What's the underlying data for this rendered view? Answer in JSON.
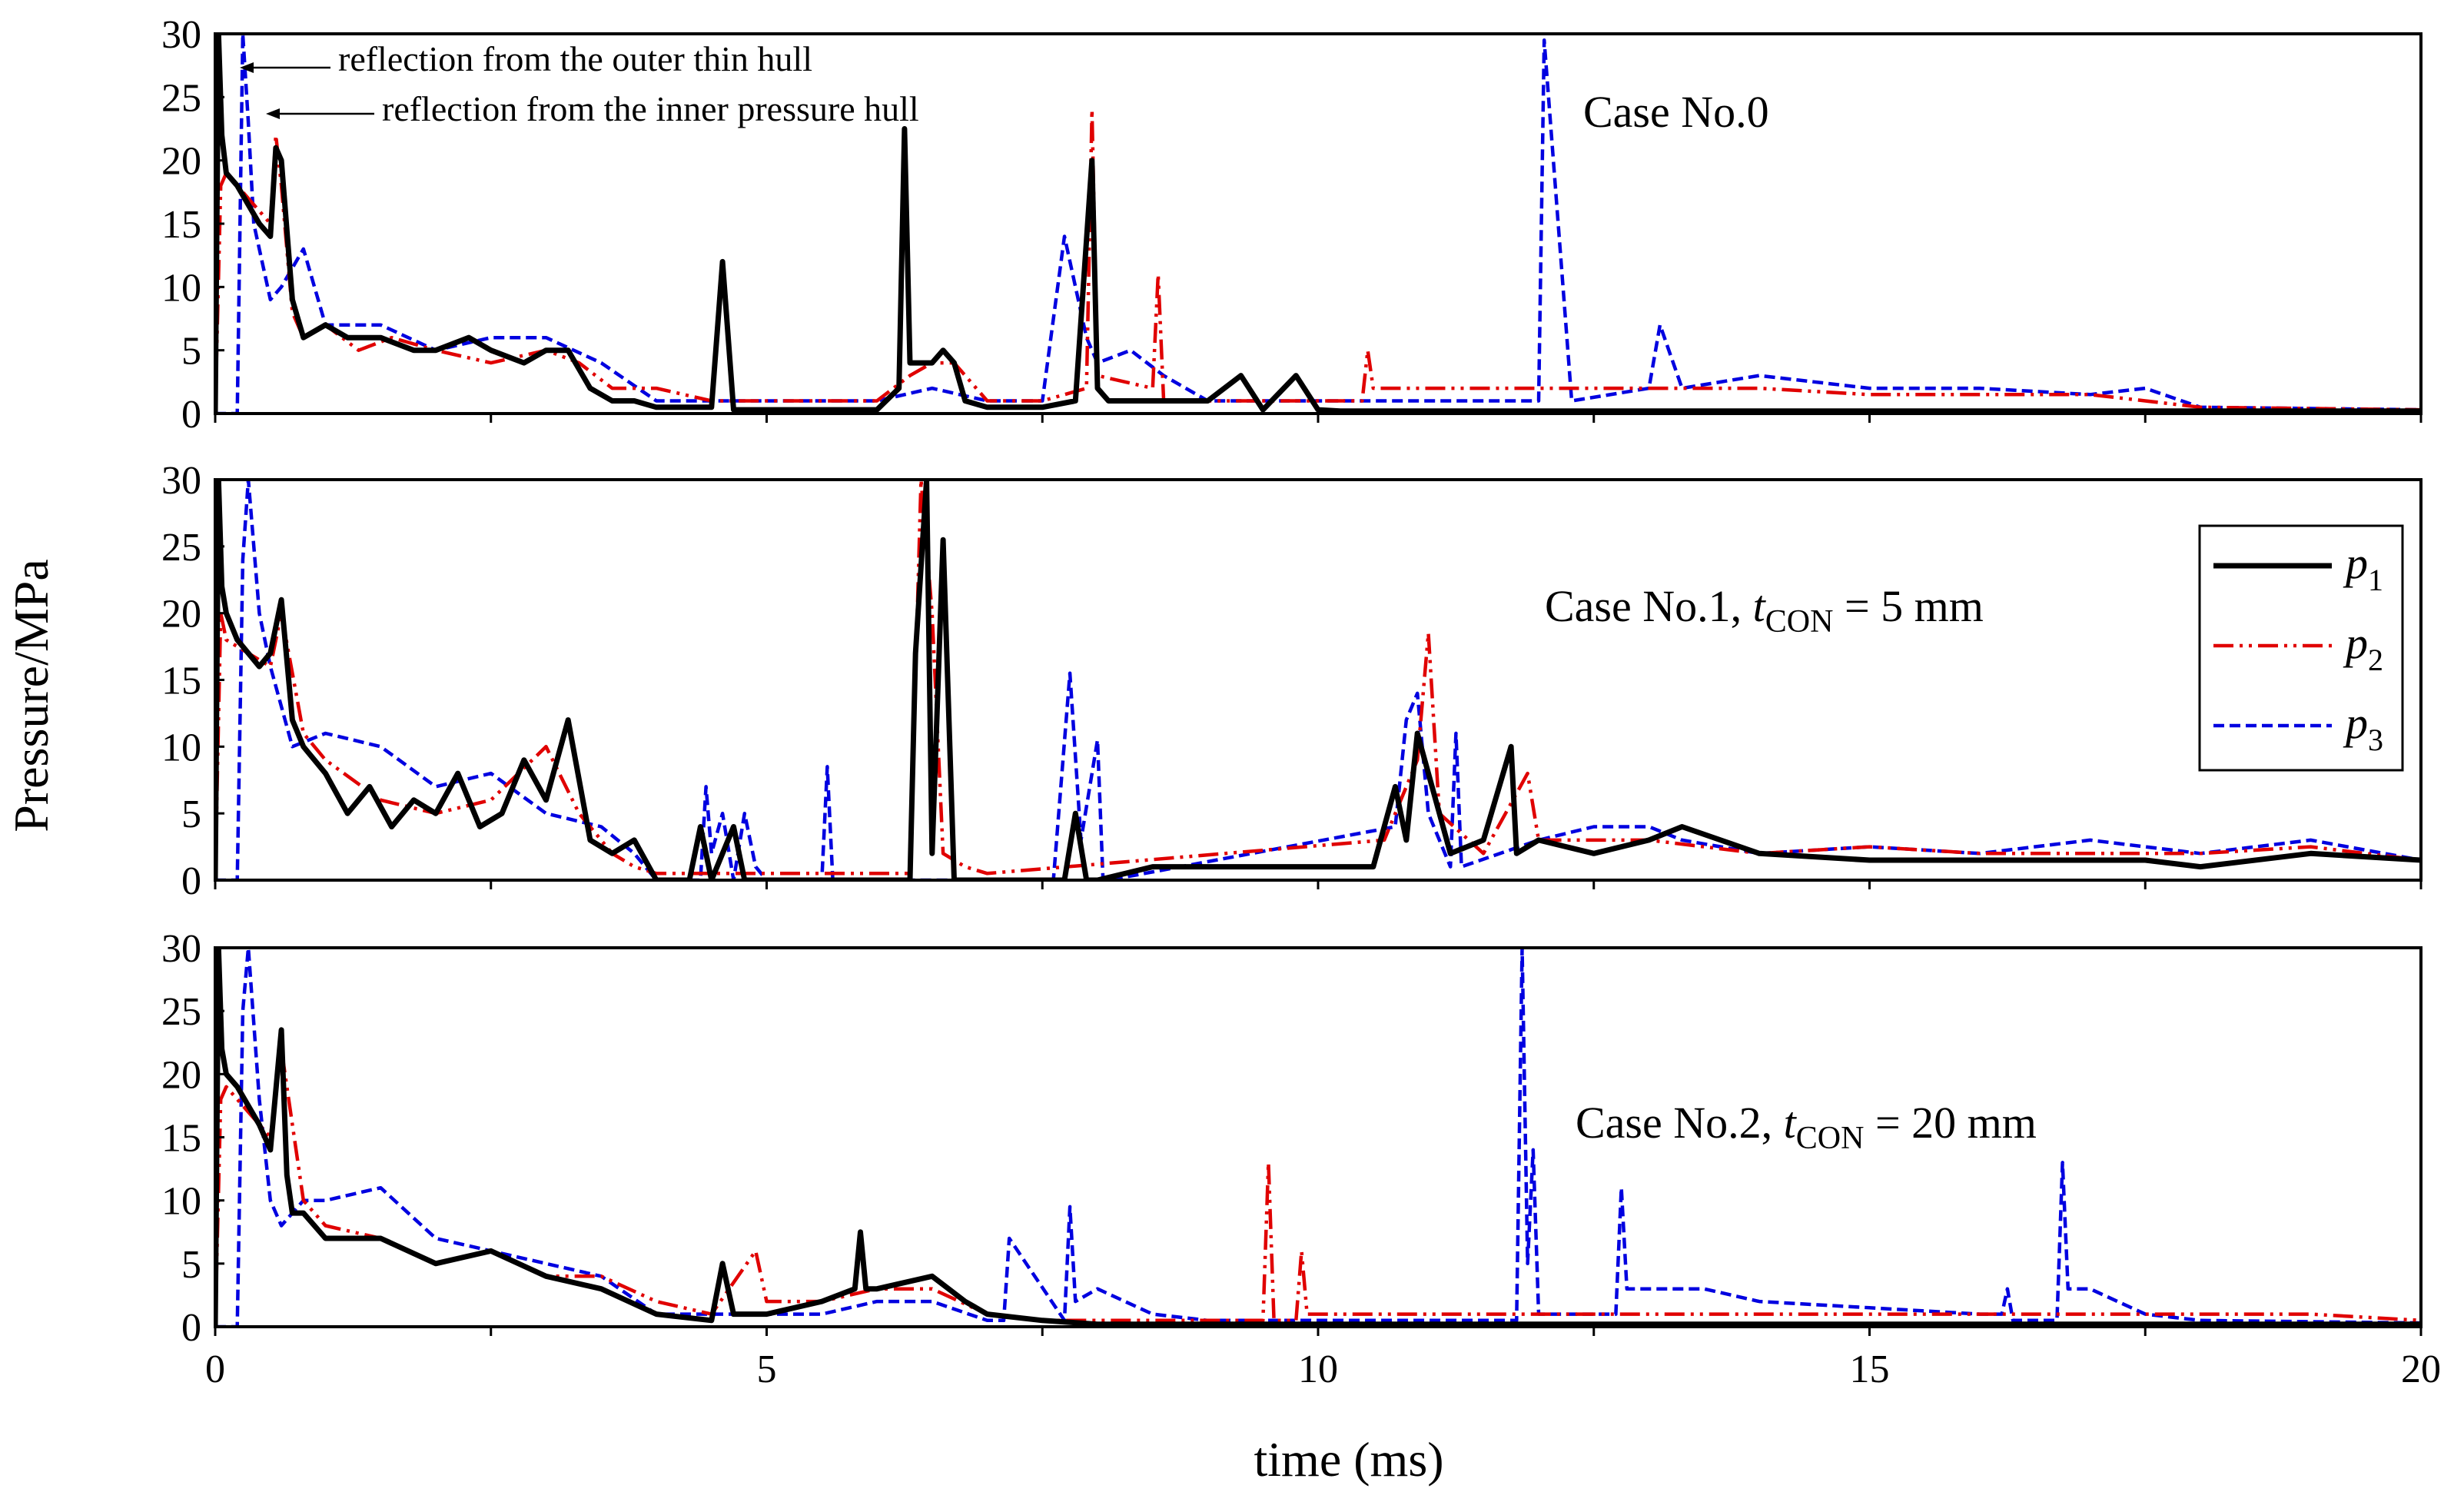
{
  "figure": {
    "ylabel": "Pressure/MPa",
    "xlabel": "time (ms)"
  },
  "chart_data": [
    {
      "type": "line",
      "panel": "top",
      "title": "Case No.0",
      "xlim": [
        0,
        20
      ],
      "ylim": [
        0,
        30
      ],
      "x_ticks": [
        0,
        5,
        10,
        15,
        20
      ],
      "y_ticks": [
        0,
        5,
        10,
        15,
        20,
        25,
        30
      ],
      "annotations": [
        {
          "text": "reflection from the outer thin hull",
          "x": 0.05,
          "y": 30
        },
        {
          "text": "reflection from the inner pressure hull",
          "x": 0.3,
          "y": 24
        }
      ],
      "series": [
        {
          "name": "p1",
          "color": "#000000",
          "dash": "solid",
          "x": [
            0,
            0.03,
            0.06,
            0.1,
            0.2,
            0.4,
            0.5,
            0.55,
            0.6,
            0.7,
            0.8,
            1.0,
            1.2,
            1.5,
            1.8,
            2.0,
            2.3,
            2.5,
            2.8,
            3.0,
            3.2,
            3.4,
            3.6,
            3.8,
            4.0,
            4.5,
            4.6,
            4.7,
            5.0,
            5.5,
            6.0,
            6.2,
            6.25,
            6.3,
            6.5,
            6.6,
            6.7,
            6.8,
            7.0,
            7.5,
            7.8,
            7.95,
            8.0,
            8.1,
            8.5,
            9.0,
            9.3,
            9.5,
            9.8,
            10.0,
            10.2,
            11.0,
            12.0,
            14.0,
            16.0,
            18.0,
            20.0
          ],
          "y": [
            0,
            30,
            22,
            19,
            18,
            15,
            14,
            21,
            20,
            9,
            6,
            7,
            6,
            6,
            5,
            5,
            6,
            5,
            4,
            5,
            5,
            2,
            1,
            1,
            0.5,
            0.5,
            12,
            0.3,
            0.3,
            0.3,
            0.3,
            2,
            22.5,
            4,
            4,
            5,
            4,
            1,
            0.5,
            0.5,
            1,
            20,
            2,
            1,
            1,
            1,
            3,
            0.3,
            3,
            0.3,
            0.2,
            0.2,
            0.2,
            0.2,
            0.2,
            0.2,
            0.2
          ]
        },
        {
          "name": "p2",
          "color": "#e00000",
          "dash": "dashdot",
          "x": [
            0,
            0.05,
            0.1,
            0.2,
            0.4,
            0.5,
            0.55,
            0.6,
            0.7,
            0.8,
            1.0,
            1.3,
            1.6,
            2.0,
            2.5,
            3.0,
            3.3,
            3.6,
            4.0,
            4.5,
            5.0,
            5.5,
            6.0,
            6.3,
            6.5,
            6.7,
            7.0,
            7.5,
            7.9,
            7.95,
            8.0,
            8.5,
            8.55,
            8.6,
            9.0,
            9.5,
            10.0,
            10.4,
            10.45,
            10.5,
            11.0,
            12.0,
            13.0,
            14.0,
            15.0,
            16.0,
            17.0,
            17.5,
            18.0,
            20.0
          ],
          "y": [
            0,
            18,
            19,
            18,
            16,
            15,
            22,
            18,
            8,
            6,
            7,
            5,
            6,
            5,
            4,
            5,
            4,
            2,
            2,
            1,
            1,
            1,
            1,
            3,
            4,
            4,
            1,
            1,
            2,
            24,
            3,
            2,
            11,
            1,
            1,
            1,
            1,
            1,
            5,
            2,
            2,
            2,
            2,
            2,
            1.5,
            1.5,
            1.5,
            1,
            0.5,
            0.3
          ]
        },
        {
          "name": "p3",
          "color": "#0000e0",
          "dash": "dash",
          "x": [
            0,
            0.2,
            0.25,
            0.3,
            0.35,
            0.5,
            0.6,
            0.8,
            1.0,
            1.5,
            2.0,
            2.5,
            3.0,
            3.5,
            4.0,
            4.5,
            5.0,
            5.5,
            6.0,
            6.5,
            7.0,
            7.5,
            7.7,
            7.9,
            8.0,
            8.3,
            8.6,
            9.0,
            10.0,
            11.0,
            11.8,
            12.0,
            12.05,
            12.3,
            13.0,
            13.1,
            13.3,
            14.0,
            15.0,
            16.0,
            17.0,
            17.5,
            18.0,
            20.0
          ],
          "y": [
            0,
            0,
            30,
            23,
            15,
            9,
            10,
            13,
            7,
            7,
            5,
            6,
            6,
            4,
            1,
            1,
            1,
            1,
            1,
            2,
            1,
            1,
            14,
            6,
            4,
            5,
            3,
            1,
            1,
            1,
            1,
            1,
            29.5,
            1,
            2,
            7,
            2,
            3,
            2,
            2,
            1.5,
            2,
            0.5,
            0.3
          ]
        }
      ]
    },
    {
      "type": "line",
      "panel": "middle",
      "title": "Case No.1,  tCON = 5 mm",
      "title_parts": {
        "prefix": "Case No.1,  ",
        "var": "t",
        "sub": "CON",
        "suffix": " = 5 mm"
      },
      "xlim": [
        0,
        20
      ],
      "ylim": [
        0,
        30
      ],
      "x_ticks": [
        0,
        5,
        10,
        15,
        20
      ],
      "y_ticks": [
        0,
        5,
        10,
        15,
        20,
        25,
        30
      ],
      "legend": {
        "placement": "right",
        "entries": [
          {
            "var": "p",
            "sub": "1"
          },
          {
            "var": "p",
            "sub": "2"
          },
          {
            "var": "p",
            "sub": "3"
          }
        ]
      },
      "series": [
        {
          "name": "p1",
          "color": "#000000",
          "dash": "solid",
          "x": [
            0,
            0.03,
            0.06,
            0.1,
            0.2,
            0.4,
            0.5,
            0.6,
            0.7,
            0.8,
            1.0,
            1.2,
            1.4,
            1.6,
            1.8,
            2.0,
            2.2,
            2.4,
            2.6,
            2.8,
            3.0,
            3.2,
            3.4,
            3.6,
            3.8,
            4.0,
            4.3,
            4.4,
            4.5,
            4.7,
            4.8,
            5.0,
            6.0,
            6.3,
            6.35,
            6.45,
            6.5,
            6.6,
            6.7,
            7.0,
            7.7,
            7.8,
            7.9,
            8.0,
            8.5,
            9.0,
            9.5,
            10.0,
            10.5,
            10.7,
            10.8,
            10.9,
            11.2,
            11.5,
            11.75,
            11.8,
            12.0,
            12.5,
            13.0,
            13.3,
            14.0,
            15.0,
            16.0,
            17.0,
            17.5,
            18.0,
            19.0,
            20.0
          ],
          "y": [
            0,
            30,
            22,
            20,
            18,
            16,
            17,
            21,
            12,
            10,
            8,
            5,
            7,
            4,
            6,
            5,
            8,
            4,
            5,
            9,
            6,
            12,
            3,
            2,
            3,
            0,
            0,
            4,
            0,
            4,
            0,
            0,
            0,
            0,
            17,
            30,
            2,
            25.5,
            0,
            0,
            0,
            5,
            0,
            0,
            1,
            1,
            1,
            1,
            1,
            7,
            3,
            11,
            2,
            3,
            10,
            2,
            3,
            2,
            3,
            4,
            2,
            1.5,
            1.5,
            1.5,
            1.5,
            1,
            2,
            1.5
          ]
        },
        {
          "name": "p2",
          "color": "#e00000",
          "dash": "dashdot",
          "x": [
            0,
            0.05,
            0.1,
            0.3,
            0.5,
            0.6,
            0.8,
            1.0,
            1.5,
            2.0,
            2.5,
            3.0,
            3.3,
            3.6,
            3.8,
            4.0,
            6.3,
            6.4,
            6.5,
            6.6,
            6.8,
            7.0,
            10.6,
            10.9,
            11.0,
            11.1,
            11.5,
            11.9,
            12.0,
            12.5,
            13.0,
            14.0,
            15.0,
            16.0,
            17.0,
            18.0,
            19.0,
            20.0
          ],
          "y": [
            0,
            20,
            18,
            17,
            16,
            20,
            11,
            9,
            6,
            5,
            6,
            10,
            5,
            2,
            1,
            0.5,
            0.5,
            30,
            20,
            2,
            1,
            0.5,
            3,
            9,
            18.5,
            5,
            2,
            8,
            3,
            3,
            3,
            2,
            2.5,
            2,
            2,
            2,
            2.5,
            1.5
          ]
        },
        {
          "name": "p3",
          "color": "#0000e0",
          "dash": "dash",
          "x": [
            0,
            0.2,
            0.25,
            0.3,
            0.4,
            0.5,
            0.7,
            1.0,
            1.5,
            2.0,
            2.5,
            3.0,
            3.5,
            3.8,
            4.0,
            4.4,
            4.45,
            4.5,
            4.6,
            4.7,
            4.8,
            4.9,
            5.0,
            5.5,
            5.55,
            5.6,
            7.6,
            7.75,
            7.85,
            8.0,
            8.05,
            8.1,
            10.7,
            10.8,
            10.9,
            11.0,
            11.2,
            11.25,
            11.3,
            12.0,
            12.5,
            13.0,
            13.3,
            14.0,
            15.0,
            16.0,
            17.0,
            18.0,
            19.0,
            20.0
          ],
          "y": [
            0,
            0,
            24,
            30,
            20,
            16,
            10,
            11,
            10,
            7,
            8,
            5,
            4,
            2,
            0,
            0,
            7,
            2,
            5,
            0,
            5,
            1,
            0,
            0,
            8.5,
            0,
            0,
            15.5,
            3,
            10.5,
            0,
            0,
            4,
            12,
            14,
            5,
            1,
            11,
            1,
            3,
            4,
            4,
            3,
            2,
            2.5,
            2,
            3,
            2,
            3,
            1.5
          ]
        }
      ]
    },
    {
      "type": "line",
      "panel": "bottom",
      "title": "Case No.2, tCON = 20 mm",
      "title_parts": {
        "prefix": "Case No.2, ",
        "var": "t",
        "sub": "CON",
        "suffix": " = 20 mm"
      },
      "xlim": [
        0,
        20
      ],
      "ylim": [
        0,
        30
      ],
      "x_ticks": [
        0,
        5,
        10,
        15,
        20
      ],
      "y_ticks": [
        0,
        5,
        10,
        15,
        20,
        25,
        30
      ],
      "series": [
        {
          "name": "p1",
          "color": "#000000",
          "dash": "solid",
          "x": [
            0,
            0.03,
            0.06,
            0.1,
            0.2,
            0.4,
            0.5,
            0.6,
            0.65,
            0.7,
            0.8,
            1.0,
            1.5,
            2.0,
            2.5,
            3.0,
            3.5,
            4.0,
            4.5,
            4.6,
            4.7,
            5.0,
            5.5,
            5.8,
            5.85,
            5.9,
            6.0,
            6.5,
            6.8,
            7.0,
            7.5,
            8.0,
            10.0,
            12.0,
            15.0,
            18.0,
            20.0
          ],
          "y": [
            0,
            30,
            22,
            20,
            19,
            16,
            14,
            23.5,
            12,
            9,
            9,
            7,
            7,
            5,
            6,
            4,
            3,
            1,
            0.5,
            5,
            1,
            1,
            2,
            3,
            7.5,
            3,
            3,
            4,
            2,
            1,
            0.5,
            0.2,
            0.2,
            0.2,
            0.2,
            0.2,
            0.2
          ]
        },
        {
          "name": "p2",
          "color": "#e00000",
          "dash": "dashdot",
          "x": [
            0,
            0.05,
            0.1,
            0.3,
            0.5,
            0.6,
            0.8,
            1.0,
            1.5,
            2.0,
            2.5,
            3.0,
            3.5,
            4.0,
            4.5,
            4.9,
            5.0,
            5.5,
            6.0,
            6.5,
            7.0,
            7.5,
            9.0,
            9.5,
            9.55,
            9.6,
            9.8,
            9.85,
            9.9,
            10.0,
            11.0,
            12.0,
            13.0,
            14.0,
            15.0,
            16.0,
            17.0,
            18.0,
            19.0,
            20.0
          ],
          "y": [
            0,
            18,
            19,
            17,
            15,
            22,
            10,
            8,
            7,
            5,
            6,
            4,
            4,
            2,
            1,
            6,
            2,
            2,
            3,
            3,
            1,
            0.5,
            0.5,
            0.5,
            13,
            0.5,
            0.5,
            6,
            1,
            1,
            1,
            1,
            1,
            1,
            1,
            1,
            1,
            1,
            1,
            0.5
          ]
        },
        {
          "name": "p3",
          "color": "#0000e0",
          "dash": "dash",
          "x": [
            0,
            0.2,
            0.25,
            0.3,
            0.4,
            0.5,
            0.6,
            0.8,
            1.0,
            1.5,
            2.0,
            2.5,
            3.0,
            3.5,
            4.0,
            4.5,
            5.0,
            5.5,
            6.0,
            6.5,
            7.0,
            7.15,
            7.2,
            7.7,
            7.75,
            7.8,
            8.0,
            8.5,
            9.0,
            10.0,
            11.0,
            11.8,
            11.85,
            11.9,
            11.95,
            12.0,
            12.5,
            12.7,
            12.75,
            12.8,
            13.5,
            14.0,
            15.0,
            16.0,
            16.2,
            16.25,
            16.3,
            16.7,
            16.75,
            16.8,
            17.0,
            17.5,
            18.0,
            20.0
          ],
          "y": [
            0,
            0,
            25,
            30,
            18,
            10,
            8,
            10,
            10,
            11,
            7,
            6,
            5,
            4,
            1,
            1,
            1,
            1,
            2,
            2,
            0.5,
            0.5,
            7,
            0.5,
            9.5,
            2,
            3,
            1,
            0.5,
            0.5,
            0.5,
            0.5,
            30,
            5,
            14,
            1,
            1,
            1,
            11,
            3,
            3,
            2,
            1.5,
            1,
            1,
            3,
            0.5,
            0.5,
            13,
            3,
            3,
            1,
            0.5,
            0.3
          ]
        }
      ]
    }
  ]
}
